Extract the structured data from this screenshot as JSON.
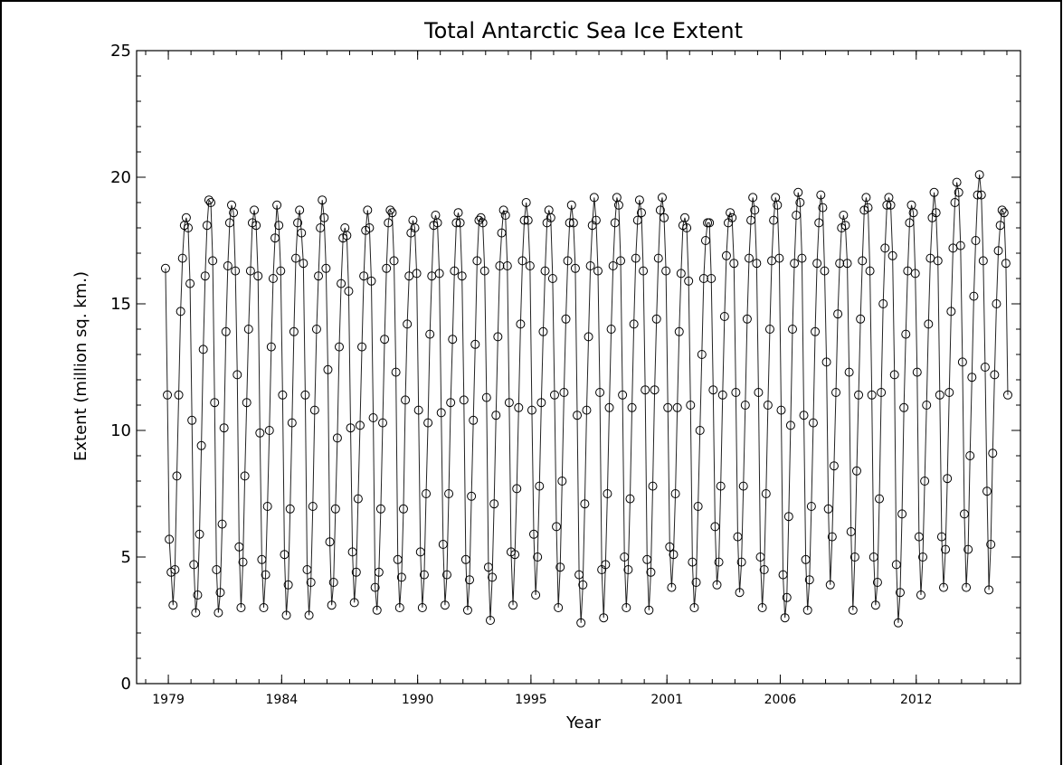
{
  "chart_data": {
    "type": "scatter",
    "title": "Total Antarctic Sea Ice Extent",
    "xlabel": "Year",
    "ylabel": "Extent (million sq. km.)",
    "xlim": [
      1977.6,
      2016.6
    ],
    "ylim": [
      0,
      25
    ],
    "x_ticks": [
      "1979",
      "1984",
      "1990",
      "1995",
      "2001",
      "2006",
      "2012"
    ],
    "y_ticks": [
      "0",
      "5",
      "10",
      "15",
      "20",
      "25"
    ],
    "grid": false,
    "legend": "none",
    "series": [
      {
        "marker": "open-circle",
        "line": true,
        "x_start": 1978.875,
        "x_step": 0.08333,
        "values": [
          16.4,
          11.4,
          5.7,
          4.4,
          3.1,
          4.5,
          8.2,
          11.4,
          14.7,
          16.8,
          18.1,
          18.4,
          18.0,
          15.8,
          10.4,
          4.7,
          2.8,
          3.5,
          5.9,
          9.4,
          13.2,
          16.1,
          18.1,
          19.1,
          19.0,
          16.7,
          11.1,
          4.5,
          2.8,
          3.6,
          6.3,
          10.1,
          13.9,
          16.5,
          18.2,
          18.9,
          18.6,
          16.3,
          12.2,
          5.4,
          3.0,
          4.8,
          8.2,
          11.1,
          14.0,
          16.3,
          18.2,
          18.7,
          18.1,
          16.1,
          9.9,
          4.9,
          3.0,
          4.3,
          7.0,
          10.0,
          13.3,
          16.0,
          17.6,
          18.9,
          18.1,
          16.3,
          11.4,
          5.1,
          2.7,
          3.9,
          6.9,
          10.3,
          13.9,
          16.8,
          18.2,
          18.7,
          17.8,
          16.6,
          11.4,
          4.5,
          2.7,
          4.0,
          7.0,
          10.8,
          14.0,
          16.1,
          18.0,
          19.1,
          18.4,
          16.4,
          12.4,
          5.6,
          3.1,
          4.0,
          6.9,
          9.7,
          13.3,
          15.8,
          17.6,
          18.0,
          17.7,
          15.5,
          10.1,
          5.2,
          3.2,
          4.4,
          7.3,
          10.2,
          13.3,
          16.1,
          17.9,
          18.7,
          18.0,
          15.9,
          10.5,
          3.8,
          2.9,
          4.4,
          6.9,
          10.3,
          13.6,
          16.4,
          18.2,
          18.7,
          18.6,
          16.7,
          12.3,
          4.9,
          3.0,
          4.2,
          6.9,
          11.2,
          14.2,
          16.1,
          17.8,
          18.3,
          18.0,
          16.2,
          10.8,
          5.2,
          3.0,
          4.3,
          7.5,
          10.3,
          13.8,
          16.1,
          18.1,
          18.5,
          18.2,
          16.2,
          10.7,
          5.5,
          3.1,
          4.3,
          7.5,
          11.1,
          13.6,
          16.3,
          18.2,
          18.6,
          18.2,
          16.1,
          11.2,
          4.9,
          2.9,
          4.1,
          7.4,
          10.4,
          13.4,
          16.7,
          18.3,
          18.4,
          18.2,
          16.3,
          11.3,
          4.6,
          2.5,
          4.2,
          7.1,
          10.6,
          13.7,
          16.5,
          17.8,
          18.7,
          18.5,
          16.5,
          11.1,
          5.2,
          3.1,
          5.1,
          7.7,
          10.9,
          14.2,
          16.7,
          18.3,
          19.0,
          18.3,
          16.5,
          10.8,
          5.9,
          3.5,
          5.0,
          7.8,
          11.1,
          13.9,
          16.3,
          18.2,
          18.7,
          18.4,
          16.0,
          11.4,
          6.2,
          3.0,
          4.6,
          8.0,
          11.5,
          14.4,
          16.7,
          18.2,
          18.9,
          18.2,
          16.4,
          10.6,
          4.3,
          2.4,
          3.9,
          7.1,
          10.8,
          13.7,
          16.5,
          18.1,
          19.2,
          18.3,
          16.3,
          11.5,
          4.5,
          2.6,
          4.7,
          7.5,
          10.9,
          14.0,
          16.5,
          18.2,
          19.2,
          18.9,
          16.7,
          11.4,
          5.0,
          3.0,
          4.5,
          7.3,
          10.9,
          14.2,
          16.8,
          18.3,
          19.1,
          18.6,
          16.3,
          11.6,
          4.9,
          2.9,
          4.4,
          7.8,
          11.6,
          14.4,
          16.8,
          18.7,
          19.2,
          18.4,
          16.3,
          10.9,
          5.4,
          3.8,
          5.1,
          7.5,
          10.9,
          13.9,
          16.2,
          18.1,
          18.4,
          18.0,
          15.9,
          11.0,
          4.8,
          3.0,
          4.0,
          7.0,
          10.0,
          13.0,
          16.0,
          17.5,
          18.2,
          18.2,
          16.0,
          11.6,
          6.2,
          3.9,
          4.8,
          7.8,
          11.4,
          14.5,
          16.9,
          18.2,
          18.6,
          18.4,
          16.6,
          11.5,
          5.8,
          3.6,
          4.8,
          7.8,
          11.0,
          14.4,
          16.8,
          18.3,
          19.2,
          18.7,
          16.6,
          11.5,
          5.0,
          3.0,
          4.5,
          7.5,
          11.0,
          14.0,
          16.7,
          18.3,
          19.2,
          18.9,
          16.8,
          10.8,
          4.3,
          2.6,
          3.4,
          6.6,
          10.2,
          14.0,
          16.6,
          18.5,
          19.4,
          19.0,
          16.8,
          10.6,
          4.9,
          2.9,
          4.1,
          7.0,
          10.3,
          13.9,
          16.6,
          18.2,
          19.3,
          18.8,
          16.3,
          12.7,
          6.9,
          3.9,
          5.8,
          8.6,
          11.5,
          14.6,
          16.6,
          18.0,
          18.5,
          18.1,
          16.6,
          12.3,
          6.0,
          2.9,
          5.0,
          8.4,
          11.4,
          14.4,
          16.7,
          18.7,
          19.2,
          18.8,
          16.3,
          11.4,
          5.0,
          3.1,
          4.0,
          7.3,
          11.5,
          15.0,
          17.2,
          18.9,
          19.2,
          18.9,
          16.9,
          12.2,
          4.7,
          2.4,
          3.6,
          6.7,
          10.9,
          13.8,
          16.3,
          18.2,
          18.9,
          18.6,
          16.2,
          12.3,
          5.8,
          3.5,
          5.0,
          8.0,
          11.0,
          14.2,
          16.8,
          18.4,
          19.4,
          18.6,
          16.7,
          11.4,
          5.8,
          3.8,
          5.3,
          8.1,
          11.5,
          14.7,
          17.2,
          19.0,
          19.8,
          19.4,
          17.3,
          12.7,
          6.7,
          3.8,
          5.3,
          9.0,
          12.1,
          15.3,
          17.5,
          19.3,
          20.1,
          19.3,
          16.7,
          12.5,
          7.6,
          3.7,
          5.5,
          9.1,
          12.2,
          15.0,
          17.1,
          18.1,
          18.7,
          18.6,
          16.6,
          11.4
        ]
      }
    ]
  }
}
